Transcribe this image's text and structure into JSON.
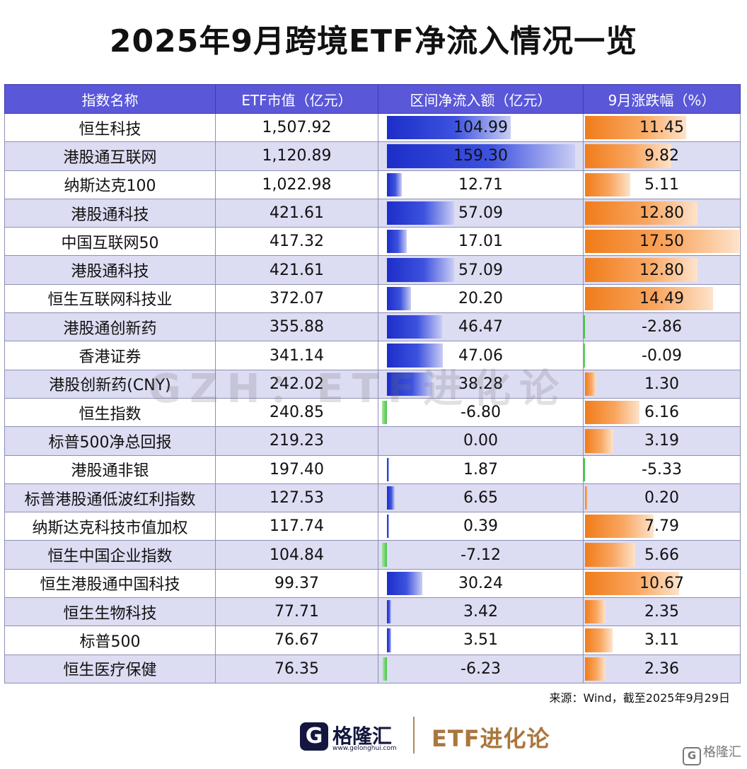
{
  "title": "2025年9月跨境ETF净流入情况一览",
  "headers": [
    "指数名称",
    "ETF市值（亿元）",
    "区间净流入额（亿元）",
    "9月涨跌幅（%）"
  ],
  "colors": {
    "header_bg": "#5a57d9",
    "row_alt": "#dcdcf2",
    "inflow_positive": "#1c2ec8",
    "inflow_negative": "#46c44a",
    "change_positive": "#f07c1a",
    "change_negative": "#46c44a"
  },
  "chart_data": {
    "type": "table",
    "columns": [
      "指数名称",
      "ETF市值（亿元）",
      "区间净流入额（亿元）",
      "9月涨跌幅（%）"
    ],
    "rows": [
      {
        "name": "恒生科技",
        "market_value": "1,507.92",
        "net_inflow": "104.99",
        "change": "11.45"
      },
      {
        "name": "港股通互联网",
        "market_value": "1,120.89",
        "net_inflow": "159.30",
        "change": "9.82"
      },
      {
        "name": "纳斯达克100",
        "market_value": "1,022.98",
        "net_inflow": "12.71",
        "change": "5.11"
      },
      {
        "name": "港股通科技",
        "market_value": "421.61",
        "net_inflow": "57.09",
        "change": "12.80"
      },
      {
        "name": "中国互联网50",
        "market_value": "417.32",
        "net_inflow": "17.01",
        "change": "17.50"
      },
      {
        "name": "港股通科技",
        "market_value": "421.61",
        "net_inflow": "57.09",
        "change": "12.80"
      },
      {
        "name": "恒生互联网科技业",
        "market_value": "372.07",
        "net_inflow": "20.20",
        "change": "14.49"
      },
      {
        "name": "港股通创新药",
        "market_value": "355.88",
        "net_inflow": "46.47",
        "change": "-2.86"
      },
      {
        "name": "香港证券",
        "market_value": "341.14",
        "net_inflow": "47.06",
        "change": "-0.09"
      },
      {
        "name": "港股创新药(CNY)",
        "market_value": "242.02",
        "net_inflow": "38.28",
        "change": "1.30"
      },
      {
        "name": "恒生指数",
        "market_value": "240.85",
        "net_inflow": "-6.80",
        "change": "6.16"
      },
      {
        "name": "标普500净总回报",
        "market_value": "219.23",
        "net_inflow": "0.00",
        "change": "3.19"
      },
      {
        "name": "港股通非银",
        "market_value": "197.40",
        "net_inflow": "1.87",
        "change": "-5.33"
      },
      {
        "name": "标普港股通低波红利指数",
        "market_value": "127.53",
        "net_inflow": "6.65",
        "change": "0.20"
      },
      {
        "name": "纳斯达克科技市值加权",
        "market_value": "117.74",
        "net_inflow": "0.39",
        "change": "7.79"
      },
      {
        "name": "恒生中国企业指数",
        "market_value": "104.84",
        "net_inflow": "-7.12",
        "change": "5.66"
      },
      {
        "name": "恒生港股通中国科技",
        "market_value": "99.37",
        "net_inflow": "30.24",
        "change": "10.67"
      },
      {
        "name": "恒生生物科技",
        "market_value": "77.71",
        "net_inflow": "3.42",
        "change": "2.35"
      },
      {
        "name": "标普500",
        "market_value": "76.67",
        "net_inflow": "3.51",
        "change": "3.11"
      },
      {
        "name": "恒生医疗保健",
        "market_value": "76.35",
        "net_inflow": "-6.23",
        "change": "2.36"
      }
    ]
  },
  "watermark": "GZH：ETF进化论",
  "source": "来源：Wind，截至2025年9月29日",
  "footer": {
    "logo_letter": "G",
    "logo_name": "格隆汇",
    "logo_url": "www.gelonghui.com",
    "brand": "ETF进化论",
    "corner_mark": "格隆汇"
  }
}
